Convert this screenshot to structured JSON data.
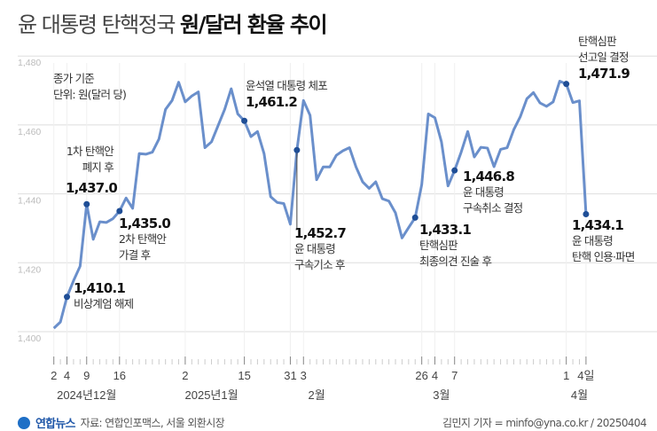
{
  "header": {
    "title_light": "윤 대통령 탄핵정국",
    "title_bold": "원/달러 환율 추이"
  },
  "chart_data": {
    "type": "line",
    "title": "윤 대통령 탄핵정국 원/달러 환율 추이",
    "note": [
      "종가 기준",
      "단위: 원(달러 당)"
    ],
    "ylim": [
      1400,
      1480
    ],
    "yticks": [
      1400,
      1420,
      1440,
      1460,
      1480
    ],
    "ytick_labels": [
      "1,400",
      "1,420",
      "1,440",
      "1,460",
      "1,480"
    ],
    "grid": true,
    "series": [
      {
        "name": "원/달러 환율",
        "color": "#6a8fcb",
        "values": [
          1401.0,
          1402.8,
          1410.1,
          1414.8,
          1419.0,
          1437.0,
          1426.8,
          1431.9,
          1431.7,
          1432.8,
          1435.0,
          1438.8,
          1435.8,
          1451.7,
          1451.5,
          1452.1,
          1455.9,
          1464.5,
          1467.1,
          1472.4,
          1466.7,
          1468.4,
          1469.6,
          1453.4,
          1455.1,
          1459.8,
          1464.5,
          1470.5,
          1463.2,
          1461.2,
          1456.6,
          1458.1,
          1451.7,
          1439.2,
          1437.5,
          1437.2,
          1431.2,
          1452.7,
          1467.1,
          1462.8,
          1444.1,
          1447.8,
          1447.8,
          1451.2,
          1452.5,
          1453.4,
          1447.8,
          1443.5,
          1441.6,
          1443.5,
          1438.6,
          1437.9,
          1434.5,
          1427.2,
          1430.2,
          1433.1,
          1442.7,
          1463.2,
          1462.1,
          1455.1,
          1442.3,
          1446.8,
          1452.1,
          1458.1,
          1450.7,
          1453.5,
          1453.3,
          1447.9,
          1452.9,
          1453.4,
          1458.6,
          1462.4,
          1467.6,
          1469.4,
          1466.4,
          1465.4,
          1466.7,
          1472.7,
          1471.9,
          1466.5,
          1467.0,
          1434.1
        ]
      }
    ],
    "xticks": [
      {
        "index": 0,
        "label": "2"
      },
      {
        "index": 2,
        "label": "4"
      },
      {
        "index": 5,
        "label": "9"
      },
      {
        "index": 10,
        "label": "16"
      },
      {
        "index": 20,
        "label": "2"
      },
      {
        "index": 29,
        "label": "15"
      },
      {
        "index": 36,
        "label": "31"
      },
      {
        "index": 38,
        "label": "3"
      },
      {
        "index": 56,
        "label": "26"
      },
      {
        "index": 58,
        "label": "4"
      },
      {
        "index": 61,
        "label": "7"
      },
      {
        "index": 78,
        "label": "1"
      },
      {
        "index": 81,
        "label": "4일"
      }
    ],
    "months": [
      {
        "index": 5,
        "label": "2024년12월"
      },
      {
        "index": 24,
        "label": "2025년1월"
      },
      {
        "index": 40,
        "label": "2월"
      },
      {
        "index": 59,
        "label": "3월"
      },
      {
        "index": 80,
        "label": "4월"
      }
    ],
    "annotations": [
      {
        "index": 2,
        "value": "1,410.1",
        "text": [
          "비상계엄 해제"
        ]
      },
      {
        "index": 5,
        "value": "1,437.0",
        "text": [
          "1차 탄핵안",
          "폐지 후"
        ]
      },
      {
        "index": 10,
        "value": "1,435.0",
        "text": [
          "2차 탄핵안",
          "가결 후"
        ]
      },
      {
        "index": 29,
        "value": "1,461.2",
        "text": [
          "윤석열 대통령 체포"
        ]
      },
      {
        "index": 37,
        "value": "1,452.7",
        "text": [
          "윤 대통령",
          "구속기소 후"
        ]
      },
      {
        "index": 55,
        "value": "1,433.1",
        "text": [
          "탄핵심판",
          "최종의견 진술 후"
        ]
      },
      {
        "index": 61,
        "value": "1,446.8",
        "text": [
          "윤 대통령",
          "구속취소 결정"
        ]
      },
      {
        "index": 78,
        "value": "1,471.9",
        "text": [
          "탄핵심판",
          "선고일 결정"
        ]
      },
      {
        "index": 81,
        "value": "1,434.1",
        "text": [
          "윤 대통령",
          "탄핵 인용·파면"
        ]
      }
    ],
    "dot_color": "#1f4e96"
  },
  "footer": {
    "logo": "연합뉴스",
    "source": "자료: 연합인포맥스, 서울 외환시장",
    "credit": "김민지 기자 = minfo@yna.co.kr / 20250404"
  }
}
